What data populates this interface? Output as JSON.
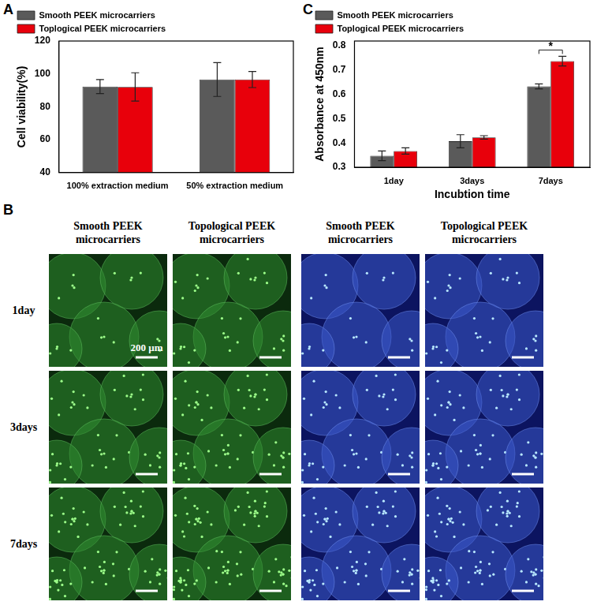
{
  "chart_data": [
    {
      "type": "bar",
      "panel_label": "A",
      "categories": [
        "100% extraction medium",
        "50% extraction medium"
      ],
      "y_label": "Cell viability(%)",
      "series": [
        {
          "name": "Smooth PEEK microcarriers",
          "color": "#5a5a5a",
          "values": [
            92.3,
            96.6
          ],
          "errors": [
            4.3,
            10.3
          ]
        },
        {
          "name": "Toplogical PEEK microcarriers",
          "color": "#e8000b",
          "values": [
            92.1,
            96.6
          ],
          "errors": [
            8.6,
            4.9
          ]
        }
      ],
      "ylim": [
        40,
        120
      ],
      "yticks": [
        40,
        60,
        80,
        100,
        120
      ],
      "grid": false,
      "legend": "top-left"
    },
    {
      "type": "bar",
      "panel_label": "C",
      "categories": [
        "1day",
        "3days",
        "7days"
      ],
      "x_label": "Incubtion time",
      "y_label": "Absorbance at 450nm",
      "series": [
        {
          "name": "Smooth PEEK microcarriers",
          "color": "#5a5a5a",
          "values": [
            0.347,
            0.407,
            0.633
          ],
          "errors": [
            0.02,
            0.027,
            0.01
          ]
        },
        {
          "name": "Toplogical PEEK microcarriers",
          "color": "#e8000b",
          "values": [
            0.367,
            0.423,
            0.737
          ],
          "errors": [
            0.013,
            0.007,
            0.02
          ]
        }
      ],
      "significance": [
        {
          "label": "*",
          "category": "7days"
        }
      ],
      "ylim": [
        0.3,
        0.82
      ],
      "yticks": [
        0.3,
        0.4,
        0.5,
        0.6,
        0.7,
        0.8
      ],
      "grid": false,
      "legend": "top-left"
    }
  ],
  "image_grid": {
    "panel_label": "B",
    "columns": [
      "Smooth PEEK microcarriers",
      "Topological PEEK microcarriers",
      "Smooth PEEK microcarriers",
      "Topological PEEK microcarriers"
    ],
    "rows": [
      "1day",
      "3days",
      "7days"
    ],
    "scale_bar_label": "200 µm"
  }
}
